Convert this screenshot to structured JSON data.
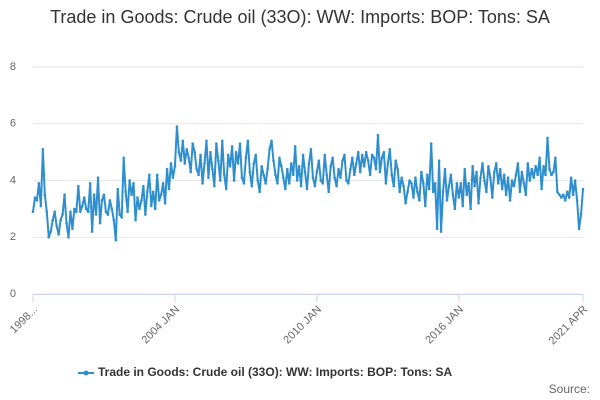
{
  "chart_data": {
    "type": "line",
    "title": "Trade in Goods: Crude oil (33O): WW: Imports: BOP: Tons: SA",
    "source": "Source:",
    "categories": [
      "1998...",
      null,
      null,
      null,
      null,
      null,
      null,
      null,
      null,
      null,
      null,
      null,
      null,
      null,
      null,
      null,
      null,
      null,
      null,
      null,
      null,
      null,
      null,
      null,
      null,
      null,
      null,
      null,
      null,
      null,
      null,
      null,
      null,
      null,
      null,
      null,
      null,
      null,
      null,
      null,
      null,
      null,
      null,
      null,
      null,
      null,
      null,
      null,
      null,
      null,
      null,
      null,
      null,
      null,
      null,
      null,
      null,
      null,
      null,
      null,
      null,
      null,
      null,
      null,
      null,
      null,
      null,
      null,
      null,
      null,
      null,
      null,
      "2004 JAN",
      null,
      null,
      null,
      null,
      null,
      null,
      null,
      null,
      null,
      null,
      null,
      null,
      null,
      null,
      null,
      null,
      null,
      null,
      null,
      null,
      null,
      null,
      null,
      null,
      null,
      null,
      null,
      null,
      null,
      null,
      null,
      null,
      null,
      null,
      null,
      null,
      null,
      null,
      null,
      null,
      null,
      null,
      null,
      null,
      null,
      null,
      null,
      null,
      null,
      null,
      null,
      null,
      null,
      null,
      null,
      null,
      null,
      null,
      null,
      null,
      null,
      null,
      null,
      null,
      null,
      null,
      null,
      null,
      null,
      null,
      null,
      "2010 JAN",
      null,
      null,
      null,
      null,
      null,
      null,
      null,
      null,
      null,
      null,
      null,
      null,
      null,
      null,
      null,
      null,
      null,
      null,
      null,
      null,
      null,
      null,
      null,
      null,
      null,
      null,
      null,
      null,
      null,
      null,
      null,
      null,
      null,
      null,
      null,
      null,
      null,
      null,
      null,
      null,
      null,
      null,
      null,
      null,
      null,
      null,
      null,
      null,
      null,
      null,
      null,
      null,
      null,
      null,
      null,
      null,
      null,
      null,
      null,
      null,
      null,
      null,
      null,
      null,
      null,
      null,
      null,
      null,
      null,
      null,
      null,
      "2016 JAN",
      null,
      null,
      null,
      null,
      null,
      null,
      null,
      null,
      null,
      null,
      null,
      null,
      null,
      null,
      null,
      null,
      null,
      null,
      null,
      null,
      null,
      null,
      null,
      null,
      null,
      null,
      null,
      null,
      null,
      null,
      null,
      null,
      null,
      null,
      null,
      null,
      null,
      null,
      null,
      null,
      null,
      null,
      null,
      null,
      null,
      null,
      null,
      null,
      null,
      null,
      null,
      null,
      null,
      null,
      null,
      null,
      null,
      null,
      null,
      null,
      null,
      null,
      "2021 APR"
    ],
    "series": [
      {
        "name": "Trade in Goods: Crude oil (33O): WW: Imports: BOP: Tons: SA",
        "color": "#2f8fce",
        "values": [
          2.9,
          3.4,
          3.3,
          3.9,
          3.1,
          5.1,
          3.5,
          2.9,
          2.0,
          2.2,
          2.6,
          2.9,
          2.4,
          2.1,
          2.6,
          2.8,
          3.5,
          2.5,
          2.0,
          2.9,
          2.3,
          3.0,
          2.9,
          3.8,
          2.9,
          3.1,
          3.4,
          3.0,
          2.9,
          3.9,
          2.2,
          3.5,
          2.8,
          4.1,
          2.5,
          3.3,
          3.5,
          2.9,
          2.8,
          3.3,
          3.0,
          2.6,
          1.9,
          3.7,
          2.8,
          2.7,
          4.8,
          3.6,
          2.9,
          4.0,
          3.5,
          3.9,
          2.6,
          3.4,
          3.0,
          3.3,
          3.8,
          2.8,
          3.6,
          4.2,
          3.1,
          3.6,
          3.0,
          4.2,
          3.3,
          3.5,
          3.9,
          3.2,
          4.4,
          3.7,
          4.6,
          4.1,
          4.5,
          5.9,
          5.0,
          4.7,
          5.4,
          4.6,
          5.1,
          4.8,
          4.3,
          5.3,
          5.0,
          4.4,
          4.2,
          4.9,
          3.9,
          4.6,
          5.4,
          4.1,
          5.0,
          4.4,
          3.8,
          5.3,
          4.7,
          4.0,
          5.4,
          4.2,
          3.7,
          4.9,
          4.5,
          5.2,
          4.0,
          5.0,
          4.6,
          5.3,
          4.1,
          3.9,
          4.8,
          5.4,
          4.3,
          3.8,
          4.6,
          4.9,
          4.0,
          3.6,
          4.5,
          4.2,
          3.9,
          4.4,
          5.1,
          5.4,
          4.7,
          4.2,
          3.9,
          4.8,
          4.5,
          4.1,
          3.7,
          4.4,
          3.9,
          4.6,
          4.2,
          5.2,
          4.0,
          4.5,
          3.8,
          4.9,
          4.3,
          3.7,
          4.6,
          5.1,
          4.1,
          3.8,
          4.3,
          4.7,
          4.0,
          3.9,
          4.9,
          4.2,
          3.6,
          4.5,
          4.8,
          4.1,
          3.8,
          4.4,
          4.1,
          4.7,
          4.9,
          4.0,
          3.9,
          4.4,
          4.8,
          4.2,
          4.6,
          5.0,
          4.3,
          4.9,
          4.5,
          5.0,
          4.7,
          4.2,
          4.9,
          4.8,
          4.4,
          5.6,
          4.3,
          4.8,
          5.0,
          3.9,
          4.6,
          5.1,
          4.2,
          3.8,
          4.7,
          4.4,
          3.6,
          4.1,
          3.8,
          3.2,
          3.6,
          4.0,
          3.9,
          3.4,
          4.1,
          3.6,
          3.3,
          4.3,
          3.9,
          3.1,
          4.2,
          3.7,
          5.3,
          3.6,
          3.9,
          2.3,
          4.7,
          2.2,
          3.6,
          4.4,
          3.3,
          3.8,
          4.2,
          3.5,
          3.0,
          3.9,
          3.4,
          3.9,
          3.1,
          4.4,
          3.5,
          3.9,
          3.0,
          4.5,
          3.8,
          4.3,
          3.2,
          4.1,
          4.6,
          4.0,
          3.6,
          4.5,
          4.1,
          3.4,
          4.3,
          4.6,
          3.9,
          4.4,
          3.7,
          4.2,
          3.5,
          4.1,
          3.3,
          4.0,
          3.8,
          4.2,
          4.6,
          3.6,
          4.3,
          3.9,
          3.5,
          4.6,
          4.0,
          4.4,
          4.1,
          4.5,
          4.2,
          4.8,
          3.7,
          4.5,
          4.2,
          5.5,
          4.4,
          4.2,
          4.3,
          4.8,
          3.6,
          3.5,
          3.4,
          3.5,
          3.3,
          3.6,
          3.4,
          4.1,
          3.5,
          4.0,
          3.3,
          2.3,
          2.8,
          3.7
        ]
      }
    ],
    "ylim": [
      0,
      8
    ],
    "yticks": [
      0,
      2,
      4,
      6,
      8
    ],
    "grid": true,
    "legend": "bottom"
  }
}
